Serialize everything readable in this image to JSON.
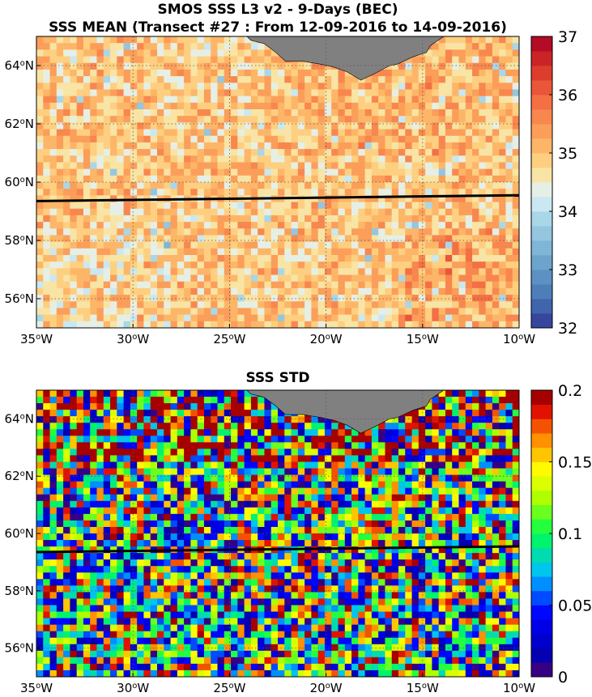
{
  "chart_data": [
    {
      "type": "heatmap",
      "title": "SMOS SSS L3 v2 - 9-Days (BEC)",
      "subtitle": "SSS MEAN (Transect #27 : From 12-09-2016 to 14-09-2016)",
      "xlim": [
        -35,
        -10
      ],
      "ylim": [
        55,
        65
      ],
      "x_ticks": [
        {
          "value": -35,
          "deg": "35",
          "hem": "W"
        },
        {
          "value": -30,
          "deg": "30",
          "hem": "W"
        },
        {
          "value": -25,
          "deg": "25",
          "hem": "W"
        },
        {
          "value": -20,
          "deg": "20",
          "hem": "W"
        },
        {
          "value": -15,
          "deg": "15",
          "hem": "W"
        },
        {
          "value": -10,
          "deg": "10",
          "hem": "W"
        }
      ],
      "y_ticks": [
        {
          "value": 56,
          "deg": "56",
          "hem": "N"
        },
        {
          "value": 58,
          "deg": "58",
          "hem": "N"
        },
        {
          "value": 60,
          "deg": "60",
          "hem": "N"
        },
        {
          "value": 62,
          "deg": "62",
          "hem": "N"
        },
        {
          "value": 64,
          "deg": "64",
          "hem": "N"
        }
      ],
      "grid": true,
      "colorbar": {
        "min": 32,
        "max": 37,
        "ticks": [
          "32",
          "33",
          "34",
          "35",
          "36",
          "37"
        ],
        "colormap": "blue-white-red (RdYlBu reversed)",
        "levels": 20
      },
      "field_description": "Mostly 34.5-35.5 with scattered lower values (blue) near 55-58N west and near the coast; higher values (36-36.5, red) concentrated east of 15W and south of 58N",
      "transect": {
        "lon": [
          -35,
          -10
        ],
        "lat": [
          59.35,
          59.55
        ],
        "color": "#000000"
      },
      "land_color": "#808080"
    },
    {
      "type": "heatmap",
      "title": "SSS STD",
      "xlim": [
        -35,
        -10
      ],
      "ylim": [
        55,
        65
      ],
      "x_ticks": [
        {
          "value": -35,
          "deg": "35",
          "hem": "W"
        },
        {
          "value": -30,
          "deg": "30",
          "hem": "W"
        },
        {
          "value": -25,
          "deg": "25",
          "hem": "W"
        },
        {
          "value": -20,
          "deg": "20",
          "hem": "W"
        },
        {
          "value": -15,
          "deg": "15",
          "hem": "W"
        },
        {
          "value": -10,
          "deg": "10",
          "hem": "W"
        }
      ],
      "y_ticks": [
        {
          "value": 56,
          "deg": "56",
          "hem": "N"
        },
        {
          "value": 58,
          "deg": "58",
          "hem": "N"
        },
        {
          "value": 60,
          "deg": "60",
          "hem": "N"
        },
        {
          "value": 62,
          "deg": "62",
          "hem": "N"
        },
        {
          "value": 64,
          "deg": "64",
          "hem": "N"
        }
      ],
      "grid": true,
      "colorbar": {
        "min": 0,
        "max": 0.2,
        "ticks": [
          "0",
          "0.05",
          "0.1",
          "0.15",
          "0.2"
        ],
        "colormap": "jet",
        "levels": 20
      },
      "field_description": "Highly noisy field spanning the full 0-0.2 range; saturated (dark red) values frequent north of 62N near the coast",
      "transect": {
        "lon": [
          -35,
          -10
        ],
        "lat": [
          59.35,
          59.55
        ],
        "color": "#000000"
      },
      "land_color": "#808080"
    }
  ]
}
